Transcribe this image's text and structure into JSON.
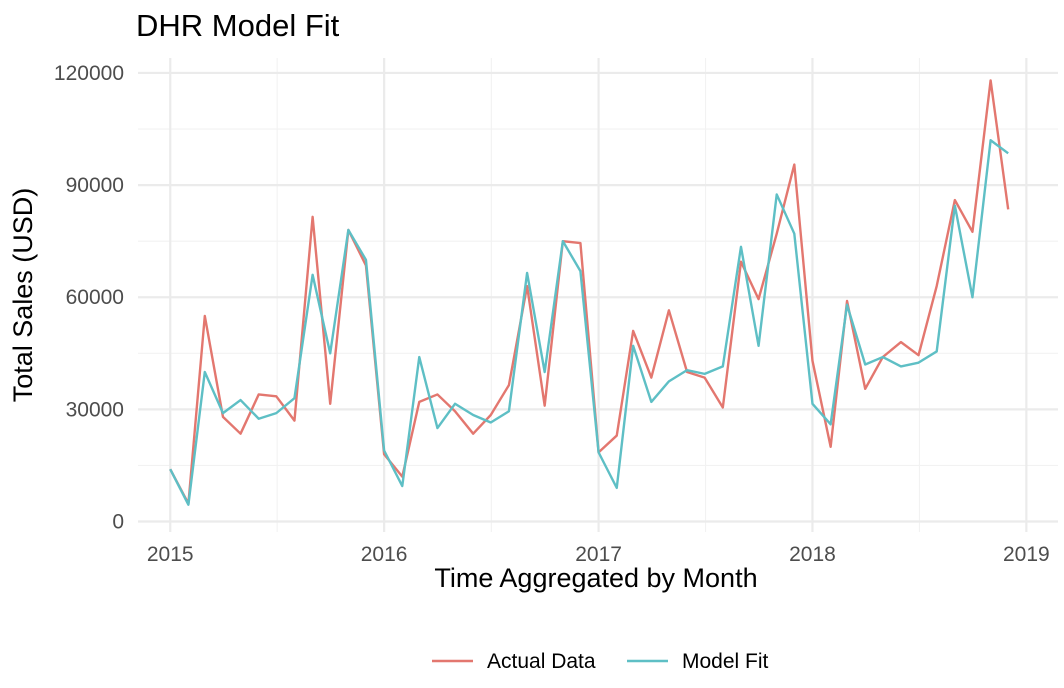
{
  "chart_data": {
    "type": "line",
    "title": "DHR Model Fit",
    "xlabel": "Time Aggregated by Month",
    "ylabel": "Total Sales (USD)",
    "xlim": [
      "2014-11-07",
      "2019-02-24"
    ],
    "ylim": [
      -2800,
      124000
    ],
    "x_ticks": [
      "2015",
      "2016",
      "2017",
      "2018",
      "2019"
    ],
    "y_ticks": [
      0,
      30000,
      60000,
      90000,
      120000
    ],
    "y_tick_labels": [
      "0",
      "30000",
      "60000",
      "90000",
      "120000"
    ],
    "grid": true,
    "legend_position": "bottom",
    "x": [
      "2015-01",
      "2015-02",
      "2015-03",
      "2015-04",
      "2015-05",
      "2015-06",
      "2015-07",
      "2015-08",
      "2015-09",
      "2015-10",
      "2015-11",
      "2015-12",
      "2016-01",
      "2016-02",
      "2016-03",
      "2016-04",
      "2016-05",
      "2016-06",
      "2016-07",
      "2016-08",
      "2016-09",
      "2016-10",
      "2016-11",
      "2016-12",
      "2017-01",
      "2017-02",
      "2017-03",
      "2017-04",
      "2017-05",
      "2017-06",
      "2017-07",
      "2017-08",
      "2017-09",
      "2017-10",
      "2017-11",
      "2017-12",
      "2018-01",
      "2018-02",
      "2018-03",
      "2018-04",
      "2018-05",
      "2018-06",
      "2018-07",
      "2018-08",
      "2018-09",
      "2018-10",
      "2018-11",
      "2018-12"
    ],
    "series": [
      {
        "name": "Actual Data",
        "color": "#e3776f",
        "values": [
          14000,
          4800,
          55000,
          28000,
          23500,
          34000,
          33500,
          27000,
          81500,
          31500,
          78000,
          68500,
          18000,
          12000,
          32000,
          34000,
          29500,
          23500,
          28500,
          36500,
          63000,
          31000,
          75000,
          74500,
          18500,
          23000,
          51000,
          38500,
          56500,
          40000,
          38500,
          30500,
          69500,
          59500,
          77000,
          95500,
          43000,
          20000,
          59000,
          35500,
          44000,
          48000,
          44500,
          63000,
          86000,
          77500,
          118000,
          83500
        ]
      },
      {
        "name": "Model Fit",
        "color": "#5ebfc5",
        "values": [
          14000,
          4500,
          40000,
          29000,
          32500,
          27500,
          29000,
          33000,
          66000,
          45000,
          78000,
          70000,
          19000,
          9500,
          44000,
          25000,
          31500,
          28500,
          26500,
          29500,
          66500,
          40000,
          75000,
          67000,
          18500,
          9000,
          47000,
          32000,
          37500,
          40500,
          39500,
          41500,
          73500,
          47000,
          87500,
          77000,
          31500,
          26000,
          58000,
          42000,
          44000,
          41500,
          42500,
          45500,
          84500,
          60000,
          102000,
          98500
        ]
      }
    ]
  }
}
